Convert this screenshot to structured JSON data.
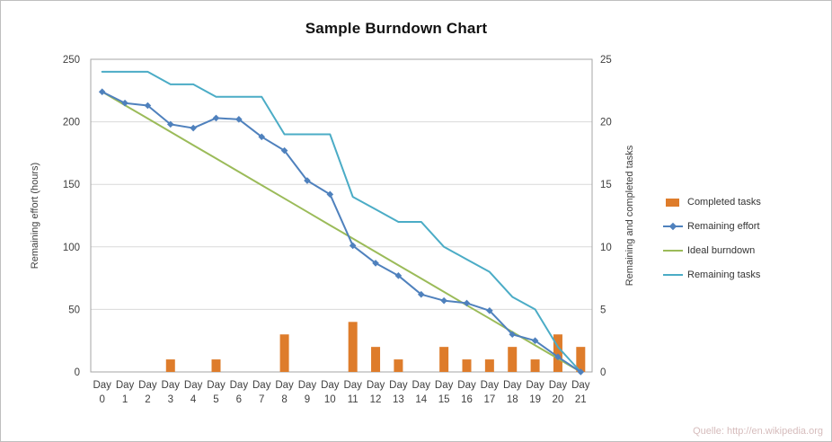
{
  "chart_data": {
    "type": "combo-bar-line",
    "title": "Sample Burndown Chart",
    "categories": [
      "Day 0",
      "Day 1",
      "Day 2",
      "Day 3",
      "Day 4",
      "Day 5",
      "Day 6",
      "Day 7",
      "Day 8",
      "Day 9",
      "Day 10",
      "Day 11",
      "Day 12",
      "Day 13",
      "Day 14",
      "Day 15",
      "Day 16",
      "Day 17",
      "Day 18",
      "Day 19",
      "Day 20",
      "Day 21"
    ],
    "left_axis": {
      "label": "Remaining effort (hours)",
      "min": 0,
      "max": 250,
      "step": 50
    },
    "right_axis": {
      "label": "Remaining and completed tasks",
      "min": 0,
      "max": 25,
      "step": 5
    },
    "grid": true,
    "legend_position": "right",
    "series": [
      {
        "name": "Completed tasks",
        "type": "bar",
        "axis": "right",
        "color": "#DE7C2B",
        "values": [
          0,
          0,
          0,
          1,
          0,
          1,
          0,
          0,
          3,
          0,
          0,
          4,
          2,
          1,
          0,
          2,
          1,
          1,
          2,
          1,
          3,
          2
        ]
      },
      {
        "name": "Remaining effort",
        "type": "line",
        "axis": "left",
        "marker": "diamond",
        "color": "#4F81BD",
        "values": [
          224,
          215,
          213,
          198,
          195,
          203,
          202,
          188,
          177,
          153,
          142,
          101,
          87,
          77,
          62,
          57,
          55,
          49,
          30,
          25,
          12,
          0
        ]
      },
      {
        "name": "Ideal burndown",
        "type": "line",
        "axis": "left",
        "color": "#9BBB59",
        "values": [
          224,
          213.3,
          202.7,
          192,
          181.3,
          170.7,
          160,
          149.3,
          138.7,
          128,
          117.3,
          106.7,
          96,
          85.3,
          74.7,
          64,
          53.3,
          42.7,
          32,
          21.3,
          10.7,
          0
        ]
      },
      {
        "name": "Remaining tasks",
        "type": "line",
        "axis": "right",
        "color": "#4BACC6",
        "values": [
          24,
          24,
          24,
          23,
          23,
          22,
          22,
          22,
          19,
          19,
          19,
          14,
          13,
          12,
          12,
          10,
          9,
          8,
          6,
          5,
          2,
          0
        ]
      }
    ],
    "plot_style": {
      "gridline_color": "#d9d9d9",
      "border_color": "#a6a6a6",
      "tick_label_color": "#3f3f3f"
    }
  },
  "watermark": "Quelle: http://en.wikipedia.org"
}
